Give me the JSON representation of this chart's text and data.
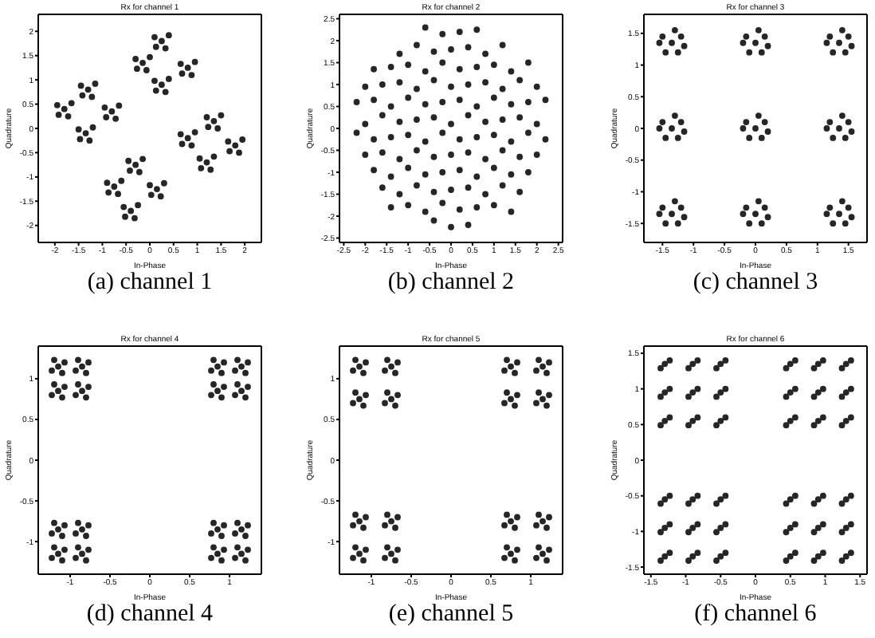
{
  "chart_data": [
    {
      "type": "scatter",
      "title": "Rx for channel 1",
      "xlabel": "In-Phase",
      "ylabel": "Quadrature",
      "annotations": [
        "(a) channel 1"
      ],
      "color": "#262626",
      "marker": "circle",
      "xlim": [
        -2.35,
        2.35
      ],
      "ylim": [
        -2.35,
        2.35
      ],
      "xticks": [
        -2,
        -1.5,
        -1,
        -0.5,
        0,
        0.5,
        1,
        1.5,
        2
      ],
      "yticks": [
        -2,
        -1.5,
        -1,
        -0.5,
        0,
        0.5,
        1,
        1.5,
        2
      ],
      "x": [
        0.25,
        0.4,
        0.1,
        0.33,
        0.13,
        -0.15,
        0,
        -0.3,
        -0.07,
        -0.27,
        0.8,
        0.95,
        0.65,
        0.88,
        0.68,
        0.25,
        0.4,
        0.1,
        0.33,
        0.13,
        -1.3,
        -1.15,
        -1.45,
        -1.22,
        -1.42,
        -1.8,
        -1.65,
        -1.95,
        -1.72,
        -1.92,
        -0.8,
        -0.65,
        -0.95,
        -0.72,
        -0.92,
        -1.35,
        -1.2,
        -1.5,
        -1.27,
        -1.47,
        1.35,
        1.5,
        1.2,
        1.43,
        1.23,
        0.8,
        0.95,
        0.65,
        0.88,
        0.68,
        1.8,
        1.95,
        1.65,
        1.88,
        1.68,
        1.2,
        1.35,
        1.05,
        1.28,
        1.08,
        -0.3,
        -0.15,
        -0.45,
        -0.22,
        -0.42,
        -0.75,
        -0.6,
        -0.9,
        -0.67,
        -0.87,
        0.15,
        0.3,
        0,
        0.23,
        0.03,
        -0.4,
        -0.25,
        -0.55,
        -0.32,
        -0.52
      ],
      "values": [
        1.8,
        1.92,
        1.88,
        1.65,
        1.68,
        1.35,
        1.47,
        1.43,
        1.2,
        1.23,
        1.25,
        1.37,
        1.33,
        1.1,
        1.13,
        0.9,
        1.02,
        0.98,
        0.75,
        0.78,
        0.8,
        0.92,
        0.88,
        0.65,
        0.68,
        0.4,
        0.52,
        0.48,
        0.25,
        0.28,
        0.35,
        0.47,
        0.43,
        0.2,
        0.23,
        -0.1,
        0.02,
        -0.02,
        -0.25,
        -0.22,
        0.15,
        0.27,
        0.23,
        0,
        0.03,
        -0.2,
        -0.08,
        -0.12,
        -0.35,
        -0.32,
        -0.35,
        -0.23,
        -0.27,
        -0.5,
        -0.47,
        -0.7,
        -0.58,
        -0.62,
        -0.85,
        -0.82,
        -0.75,
        -0.63,
        -0.67,
        -0.9,
        -0.87,
        -1.2,
        -1.08,
        -1.12,
        -1.35,
        -1.32,
        -1.25,
        -1.13,
        -1.17,
        -1.4,
        -1.37,
        -1.7,
        -1.58,
        -1.62,
        -1.85,
        -1.82
      ]
    },
    {
      "type": "scatter",
      "title": "Rx for channel 2",
      "xlabel": "In-Phase",
      "ylabel": "Quadrature",
      "annotations": [
        "(b) channel 2"
      ],
      "color": "#262626",
      "marker": "circle",
      "xlim": [
        -2.6,
        2.6
      ],
      "ylim": [
        -2.6,
        2.6
      ],
      "xticks": [
        -2.5,
        -2,
        -1.5,
        -1,
        -0.5,
        0,
        0.5,
        1,
        1.5,
        2,
        2.5
      ],
      "yticks": [
        -2.5,
        -2,
        -1.5,
        -1,
        -0.5,
        0,
        0.5,
        1,
        1.5,
        2,
        2.5
      ],
      "x": [
        -0.6,
        -0.2,
        0.2,
        0.6,
        -1.2,
        -0.8,
        -0.4,
        0,
        0.4,
        0.8,
        1.2,
        -1.8,
        -1.4,
        -1,
        -0.6,
        -0.2,
        0.2,
        0.6,
        1,
        1.4,
        1.8,
        -2,
        -1.6,
        -1.2,
        -0.8,
        -0.4,
        0,
        0.4,
        0.8,
        1.2,
        1.6,
        2,
        -2.2,
        -1.8,
        -1.4,
        -1,
        -0.6,
        -0.2,
        0.2,
        0.6,
        1,
        1.4,
        1.8,
        2.2,
        -2,
        -1.6,
        -1.2,
        -0.8,
        -0.4,
        0,
        0.4,
        0.8,
        1.2,
        1.6,
        2,
        -2.2,
        -1.8,
        -1.4,
        -1,
        -0.6,
        -0.2,
        0.2,
        0.6,
        1,
        1.4,
        1.8,
        2.2,
        -2,
        -1.6,
        -1.2,
        -0.8,
        -0.4,
        0,
        0.4,
        0.8,
        1.2,
        1.6,
        2,
        -1.8,
        -1.4,
        -1,
        -0.6,
        -0.2,
        0.2,
        0.6,
        1,
        1.4,
        1.8,
        -1.6,
        -1.2,
        -0.8,
        -0.4,
        0,
        0.4,
        0.8,
        1.2,
        1.6,
        -1.4,
        -1,
        -0.6,
        -0.2,
        0.2,
        0.6,
        1,
        1.4,
        -0.4,
        0,
        0.4
      ],
      "values": [
        2.3,
        2.15,
        2.2,
        2.25,
        1.7,
        1.9,
        1.75,
        1.8,
        1.85,
        1.7,
        1.9,
        1.35,
        1.4,
        1.45,
        1.3,
        1.5,
        1.35,
        1.4,
        1.45,
        1.3,
        1.5,
        0.95,
        1,
        1.05,
        0.9,
        1.1,
        0.95,
        1,
        1.05,
        0.9,
        1.1,
        0.95,
        0.6,
        0.65,
        0.5,
        0.7,
        0.55,
        0.6,
        0.65,
        0.5,
        0.7,
        0.55,
        0.6,
        0.65,
        0.1,
        0.3,
        0.15,
        0.2,
        0.25,
        0.1,
        0.3,
        0.15,
        0.2,
        0.25,
        0.1,
        -0.1,
        -0.25,
        -0.2,
        -0.15,
        -0.3,
        -0.1,
        -0.25,
        -0.2,
        -0.15,
        -0.3,
        -0.1,
        -0.25,
        -0.6,
        -0.55,
        -0.7,
        -0.5,
        -0.65,
        -0.6,
        -0.55,
        -0.7,
        -0.5,
        -0.65,
        -0.6,
        -0.95,
        -1.1,
        -0.9,
        -1.05,
        -1,
        -0.95,
        -1.1,
        -0.9,
        -1.05,
        -1,
        -1.35,
        -1.5,
        -1.3,
        -1.45,
        -1.4,
        -1.35,
        -1.5,
        -1.3,
        -1.45,
        -1.8,
        -1.75,
        -1.9,
        -1.7,
        -1.85,
        -1.8,
        -1.75,
        -1.9,
        -2.1,
        -2.25,
        -2.2
      ]
    },
    {
      "type": "scatter",
      "title": "Rx for channel 3",
      "xlabel": "In-Phase",
      "ylabel": "Quadrature",
      "annotations": [
        "(c) channel 3"
      ],
      "color": "#262626",
      "marker": "circle",
      "xlim": [
        -1.8,
        1.8
      ],
      "ylim": [
        -1.8,
        1.8
      ],
      "xticks": [
        -1.5,
        -1,
        -0.5,
        0,
        0.5,
        1,
        1.5
      ],
      "yticks": [
        -1.5,
        -1,
        -0.5,
        0,
        0.5,
        1,
        1.5
      ],
      "x": [
        -1.35,
        -1.2,
        -1.5,
        -1.25,
        -1.45,
        -1.15,
        -1.55,
        -1.3,
        0,
        0.15,
        -0.15,
        0.1,
        -0.1,
        0.2,
        -0.2,
        0.05,
        1.35,
        1.5,
        1.2,
        1.45,
        1.25,
        1.55,
        1.15,
        1.4,
        -1.35,
        -1.2,
        -1.5,
        -1.25,
        -1.45,
        -1.15,
        -1.55,
        -1.3,
        0,
        0.15,
        -0.15,
        0.1,
        -0.1,
        0.2,
        -0.2,
        0.05,
        1.35,
        1.5,
        1.2,
        1.45,
        1.25,
        1.55,
        1.15,
        1.4,
        -1.35,
        -1.2,
        -1.5,
        -1.25,
        -1.45,
        -1.15,
        -1.55,
        -1.3,
        0,
        0.15,
        -0.15,
        0.1,
        -0.1,
        0.2,
        -0.2,
        0.05,
        1.35,
        1.5,
        1.2,
        1.45,
        1.25,
        1.55,
        1.15,
        1.4
      ],
      "values": [
        1.35,
        1.45,
        1.45,
        1.2,
        1.2,
        1.3,
        1.35,
        1.55,
        1.35,
        1.45,
        1.45,
        1.2,
        1.2,
        1.3,
        1.35,
        1.55,
        1.35,
        1.45,
        1.45,
        1.2,
        1.2,
        1.3,
        1.35,
        1.55,
        0,
        0.1,
        0.1,
        -0.15,
        -0.15,
        -0.05,
        0,
        0.2,
        0,
        0.1,
        0.1,
        -0.15,
        -0.15,
        -0.05,
        0,
        0.2,
        0,
        0.1,
        0.1,
        -0.15,
        -0.15,
        -0.05,
        0,
        0.2,
        -1.35,
        -1.25,
        -1.25,
        -1.5,
        -1.5,
        -1.4,
        -1.35,
        -1.15,
        -1.35,
        -1.25,
        -1.25,
        -1.5,
        -1.5,
        -1.4,
        -1.35,
        -1.15,
        -1.35,
        -1.25,
        -1.25,
        -1.5,
        -1.5,
        -1.4,
        -1.35,
        -1.15
      ]
    },
    {
      "type": "scatter",
      "title": "Rx for channel 4",
      "xlabel": "In-Phase",
      "ylabel": "Quadrature",
      "annotations": [
        "(d) channel 4"
      ],
      "color": "#262626",
      "marker": "circle",
      "xlim": [
        -1.4,
        1.4
      ],
      "ylim": [
        -1.4,
        1.4
      ],
      "xticks": [
        -1,
        -0.5,
        0,
        0.5,
        1
      ],
      "yticks": [
        -1,
        -0.5,
        0,
        0.5,
        1
      ],
      "x": [
        -1.15,
        -1.07,
        -1.2,
        -1.1,
        -1.23,
        -0.85,
        -0.77,
        -0.9,
        -0.8,
        -0.93,
        0.85,
        0.93,
        0.8,
        0.9,
        0.77,
        1.15,
        1.23,
        1.1,
        1.2,
        1.07,
        -1.15,
        -1.07,
        -1.2,
        -1.1,
        -1.23,
        -0.85,
        -0.77,
        -0.9,
        -0.8,
        -0.93,
        0.85,
        0.93,
        0.8,
        0.9,
        0.77,
        1.15,
        1.23,
        1.1,
        1.2,
        1.07,
        -1.15,
        -1.07,
        -1.2,
        -1.1,
        -1.23,
        -0.85,
        -0.77,
        -0.9,
        -0.8,
        -0.93,
        0.85,
        0.93,
        0.8,
        0.9,
        0.77,
        1.15,
        1.23,
        1.1,
        1.2,
        1.07,
        -1.15,
        -1.07,
        -1.2,
        -1.1,
        -1.23,
        -0.85,
        -0.77,
        -0.9,
        -0.8,
        -0.93,
        0.85,
        0.93,
        0.8,
        0.9,
        0.77,
        1.15,
        1.23,
        1.1,
        1.2,
        1.07
      ],
      "values": [
        1.15,
        1.2,
        1.23,
        1.07,
        1.1,
        1.15,
        1.2,
        1.23,
        1.07,
        1.1,
        1.15,
        1.2,
        1.23,
        1.07,
        1.1,
        1.15,
        1.2,
        1.23,
        1.07,
        1.1,
        0.85,
        0.9,
        0.93,
        0.77,
        0.8,
        0.85,
        0.9,
        0.93,
        0.77,
        0.8,
        0.85,
        0.9,
        0.93,
        0.77,
        0.8,
        0.85,
        0.9,
        0.93,
        0.77,
        0.8,
        -0.85,
        -0.8,
        -0.77,
        -0.93,
        -0.9,
        -0.85,
        -0.8,
        -0.77,
        -0.93,
        -0.9,
        -0.85,
        -0.8,
        -0.77,
        -0.93,
        -0.9,
        -0.85,
        -0.8,
        -0.77,
        -0.93,
        -0.9,
        -1.15,
        -1.1,
        -1.07,
        -1.23,
        -1.2,
        -1.15,
        -1.1,
        -1.07,
        -1.23,
        -1.2,
        -1.15,
        -1.1,
        -1.07,
        -1.23,
        -1.2,
        -1.15,
        -1.1,
        -1.07,
        -1.23,
        -1.2
      ]
    },
    {
      "type": "scatter",
      "title": "Rx for channel 5",
      "xlabel": "In-Phase",
      "ylabel": "Quadrature",
      "annotations": [
        "(e) channel 5"
      ],
      "color": "#262626",
      "marker": "circle",
      "xlim": [
        -1.4,
        1.4
      ],
      "ylim": [
        -1.4,
        1.4
      ],
      "xticks": [
        -1,
        -0.5,
        0,
        0.5,
        1
      ],
      "yticks": [
        -1,
        -0.5,
        0,
        0.5,
        1
      ],
      "x": [
        -1.15,
        -1.07,
        -1.2,
        -1.1,
        -1.23,
        -0.75,
        -0.67,
        -0.8,
        -0.7,
        -0.83,
        0.75,
        0.83,
        0.7,
        0.8,
        0.67,
        1.15,
        1.23,
        1.1,
        1.2,
        1.07,
        -1.15,
        -1.07,
        -1.2,
        -1.1,
        -1.23,
        -0.75,
        -0.67,
        -0.8,
        -0.7,
        -0.83,
        0.75,
        0.83,
        0.7,
        0.8,
        0.67,
        1.15,
        1.23,
        1.1,
        1.2,
        1.07,
        -1.15,
        -1.07,
        -1.2,
        -1.1,
        -1.23,
        -0.75,
        -0.67,
        -0.8,
        -0.7,
        -0.83,
        0.75,
        0.83,
        0.7,
        0.8,
        0.67,
        1.15,
        1.23,
        1.1,
        1.2,
        1.07,
        -1.15,
        -1.07,
        -1.2,
        -1.1,
        -1.23,
        -0.75,
        -0.67,
        -0.8,
        -0.7,
        -0.83,
        0.75,
        0.83,
        0.7,
        0.8,
        0.67,
        1.15,
        1.23,
        1.1,
        1.2,
        1.07
      ],
      "values": [
        1.15,
        1.2,
        1.23,
        1.07,
        1.1,
        1.15,
        1.2,
        1.23,
        1.07,
        1.1,
        1.15,
        1.2,
        1.23,
        1.07,
        1.1,
        1.15,
        1.2,
        1.23,
        1.07,
        1.1,
        0.75,
        0.8,
        0.83,
        0.67,
        0.7,
        0.75,
        0.8,
        0.83,
        0.67,
        0.7,
        0.75,
        0.8,
        0.83,
        0.67,
        0.7,
        0.75,
        0.8,
        0.83,
        0.67,
        0.7,
        -0.75,
        -0.7,
        -0.67,
        -0.83,
        -0.8,
        -0.75,
        -0.7,
        -0.67,
        -0.83,
        -0.8,
        -0.75,
        -0.7,
        -0.67,
        -0.83,
        -0.8,
        -0.75,
        -0.7,
        -0.67,
        -0.83,
        -0.8,
        -1.15,
        -1.1,
        -1.07,
        -1.23,
        -1.2,
        -1.15,
        -1.1,
        -1.07,
        -1.23,
        -1.2,
        -1.15,
        -1.1,
        -1.07,
        -1.23,
        -1.2,
        -1.15,
        -1.1,
        -1.07,
        -1.23,
        -1.2
      ]
    },
    {
      "type": "scatter",
      "title": "Rx for channel 6",
      "xlabel": "In-Phase",
      "ylabel": "Quadrature",
      "annotations": [
        "(f) channel 6"
      ],
      "color": "#262626",
      "marker": "circle",
      "xlim": [
        -1.6,
        1.6
      ],
      "ylim": [
        -1.6,
        1.6
      ],
      "xticks": [
        -1.5,
        -1,
        -0.5,
        0,
        0.5,
        1,
        1.5
      ],
      "yticks": [
        -1.5,
        -1,
        -0.5,
        0,
        0.5,
        1,
        1.5
      ],
      "x": [
        -1.3,
        -1.23,
        -1.36,
        -0.9,
        -0.83,
        -0.96,
        -0.5,
        -0.43,
        -0.56,
        0.5,
        0.57,
        0.44,
        0.9,
        0.97,
        0.84,
        1.3,
        1.37,
        1.24,
        -1.3,
        -1.23,
        -1.36,
        -0.9,
        -0.83,
        -0.96,
        -0.5,
        -0.43,
        -0.56,
        0.5,
        0.57,
        0.44,
        0.9,
        0.97,
        0.84,
        1.3,
        1.37,
        1.24,
        -1.3,
        -1.23,
        -1.36,
        -0.9,
        -0.83,
        -0.96,
        -0.5,
        -0.43,
        -0.56,
        0.5,
        0.57,
        0.44,
        0.9,
        0.97,
        0.84,
        1.3,
        1.37,
        1.24,
        -1.3,
        -1.23,
        -1.36,
        -0.9,
        -0.83,
        -0.96,
        -0.5,
        -0.43,
        -0.56,
        0.5,
        0.57,
        0.44,
        0.9,
        0.97,
        0.84,
        1.3,
        1.37,
        1.24,
        -1.3,
        -1.23,
        -1.36,
        -0.9,
        -0.83,
        -0.96,
        -0.5,
        -0.43,
        -0.56,
        0.5,
        0.57,
        0.44,
        0.9,
        0.97,
        0.84,
        1.3,
        1.37,
        1.24,
        -1.3,
        -1.23,
        -1.36,
        -0.9,
        -0.83,
        -0.96,
        -0.5,
        -0.43,
        -0.56,
        0.5,
        0.57,
        0.44,
        0.9,
        0.97,
        0.84,
        1.3,
        1.37,
        1.24
      ],
      "values": [
        1.35,
        1.4,
        1.29,
        1.35,
        1.4,
        1.29,
        1.35,
        1.4,
        1.29,
        1.35,
        1.4,
        1.29,
        1.35,
        1.4,
        1.29,
        1.35,
        1.4,
        1.29,
        0.95,
        1,
        0.89,
        0.95,
        1,
        0.89,
        0.95,
        1,
        0.89,
        0.95,
        1,
        0.89,
        0.95,
        1,
        0.89,
        0.95,
        1,
        0.89,
        0.55,
        0.6,
        0.49,
        0.55,
        0.6,
        0.49,
        0.55,
        0.6,
        0.49,
        0.55,
        0.6,
        0.49,
        0.55,
        0.6,
        0.49,
        0.55,
        0.6,
        0.49,
        -0.55,
        -0.5,
        -0.61,
        -0.55,
        -0.5,
        -0.61,
        -0.55,
        -0.5,
        -0.61,
        -0.55,
        -0.5,
        -0.61,
        -0.55,
        -0.5,
        -0.61,
        -0.55,
        -0.5,
        -0.61,
        -0.95,
        -0.9,
        -1.01,
        -0.95,
        -0.9,
        -1.01,
        -0.95,
        -0.9,
        -1.01,
        -0.95,
        -0.9,
        -1.01,
        -0.95,
        -0.9,
        -1.01,
        -0.95,
        -0.9,
        -1.01,
        -1.35,
        -1.3,
        -1.41,
        -1.35,
        -1.3,
        -1.41,
        -1.35,
        -1.3,
        -1.41,
        -1.35,
        -1.3,
        -1.41,
        -1.35,
        -1.3,
        -1.41,
        -1.35,
        -1.3,
        -1.41
      ]
    }
  ]
}
